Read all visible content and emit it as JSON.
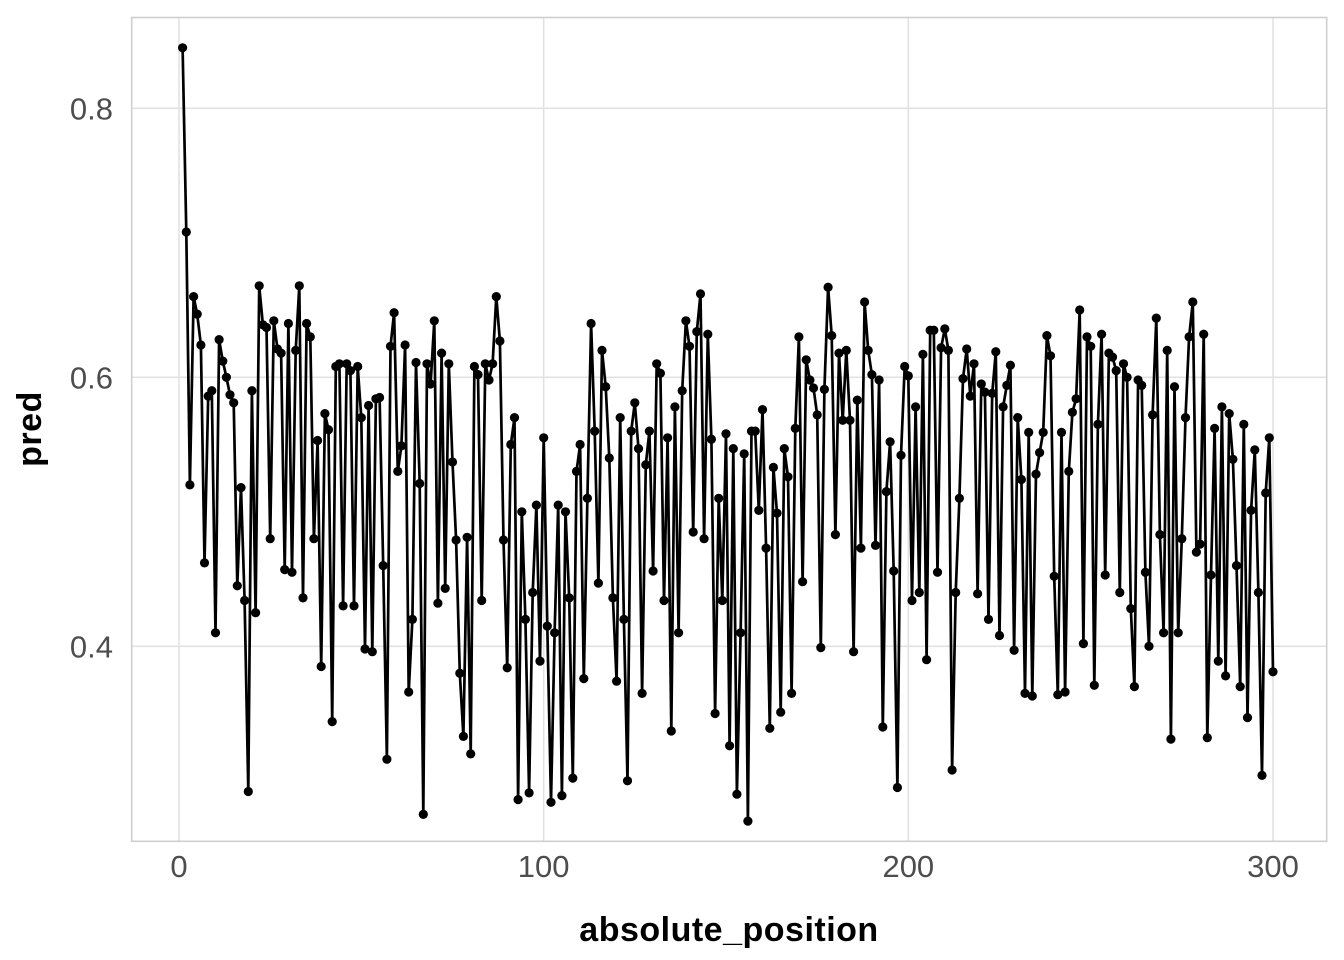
{
  "chart": {
    "xlabel": "absolute_position",
    "ylabel": "pred",
    "x_tick_labels": [
      "0",
      "100",
      "200",
      "300"
    ],
    "y_tick_labels": [
      "0.4",
      "0.6",
      "0.8"
    ],
    "x_ticks": [
      0,
      100,
      200,
      300
    ],
    "y_ticks": [
      0.4,
      0.6,
      0.8
    ],
    "colors": {
      "background": "#ffffff",
      "panel_background": "#ffffff",
      "panel_border": "#cfcfcf",
      "gridline": "#e2e2e2",
      "series": "#000000",
      "tick_label": "#4d4d4d",
      "axis_title": "#000000"
    }
  },
  "chart_data": {
    "type": "line",
    "title": "",
    "xlabel": "absolute_position",
    "ylabel": "pred",
    "legend": "none",
    "grid": true,
    "marker": "point",
    "xlim": [
      -12.97,
      314.73
    ],
    "ylim": [
      0.255,
      0.8675
    ],
    "x_start": 1,
    "x_step": 1,
    "n_points": 300,
    "series": [
      {
        "name": "pred",
        "y": [
          0.845,
          0.708,
          0.52,
          0.66,
          0.647,
          0.624,
          0.462,
          0.586,
          0.59,
          0.41,
          0.628,
          0.612,
          0.6,
          0.587,
          0.581,
          0.445,
          0.518,
          0.434,
          0.292,
          0.59,
          0.425,
          0.668,
          0.639,
          0.637,
          0.48,
          0.642,
          0.621,
          0.618,
          0.457,
          0.64,
          0.455,
          0.62,
          0.668,
          0.436,
          0.64,
          0.63,
          0.48,
          0.553,
          0.385,
          0.573,
          0.561,
          0.344,
          0.608,
          0.61,
          0.43,
          0.61,
          0.605,
          0.43,
          0.608,
          0.57,
          0.398,
          0.579,
          0.396,
          0.584,
          0.585,
          0.46,
          0.316,
          0.623,
          0.648,
          0.53,
          0.549,
          0.624,
          0.366,
          0.42,
          0.611,
          0.521,
          0.275,
          0.61,
          0.595,
          0.642,
          0.432,
          0.618,
          0.443,
          0.61,
          0.537,
          0.479,
          0.38,
          0.333,
          0.481,
          0.32,
          0.608,
          0.602,
          0.434,
          0.61,
          0.598,
          0.61,
          0.66,
          0.627,
          0.479,
          0.384,
          0.55,
          0.57,
          0.286,
          0.5,
          0.42,
          0.291,
          0.44,
          0.505,
          0.389,
          0.555,
          0.415,
          0.284,
          0.41,
          0.505,
          0.289,
          0.5,
          0.436,
          0.302,
          0.53,
          0.55,
          0.376,
          0.51,
          0.64,
          0.56,
          0.447,
          0.62,
          0.593,
          0.54,
          0.436,
          0.374,
          0.57,
          0.42,
          0.3,
          0.56,
          0.581,
          0.547,
          0.365,
          0.535,
          0.56,
          0.456,
          0.61,
          0.603,
          0.434,
          0.555,
          0.337,
          0.578,
          0.41,
          0.59,
          0.642,
          0.623,
          0.485,
          0.634,
          0.662,
          0.48,
          0.632,
          0.554,
          0.35,
          0.51,
          0.434,
          0.558,
          0.326,
          0.547,
          0.29,
          0.41,
          0.543,
          0.27,
          0.56,
          0.56,
          0.501,
          0.576,
          0.473,
          0.339,
          0.533,
          0.499,
          0.351,
          0.547,
          0.526,
          0.365,
          0.562,
          0.63,
          0.448,
          0.613,
          0.598,
          0.592,
          0.572,
          0.399,
          0.591,
          0.667,
          0.631,
          0.483,
          0.618,
          0.568,
          0.62,
          0.568,
          0.396,
          0.583,
          0.473,
          0.656,
          0.62,
          0.602,
          0.475,
          0.598,
          0.34,
          0.515,
          0.552,
          0.456,
          0.295,
          0.542,
          0.608,
          0.601,
          0.434,
          0.578,
          0.44,
          0.617,
          0.39,
          0.635,
          0.635,
          0.455,
          0.622,
          0.636,
          0.62,
          0.308,
          0.44,
          0.51,
          0.599,
          0.621,
          0.586,
          0.61,
          0.439,
          0.595,
          0.589,
          0.42,
          0.588,
          0.619,
          0.408,
          0.578,
          0.594,
          0.609,
          0.397,
          0.57,
          0.524,
          0.365,
          0.559,
          0.363,
          0.528,
          0.544,
          0.559,
          0.631,
          0.616,
          0.452,
          0.364,
          0.559,
          0.366,
          0.53,
          0.574,
          0.584,
          0.65,
          0.402,
          0.63,
          0.623,
          0.371,
          0.565,
          0.632,
          0.453,
          0.618,
          0.615,
          0.605,
          0.44,
          0.61,
          0.6,
          0.428,
          0.37,
          0.598,
          0.594,
          0.455,
          0.4,
          0.572,
          0.644,
          0.483,
          0.41,
          0.62,
          0.331,
          0.593,
          0.41,
          0.48,
          0.57,
          0.63,
          0.656,
          0.47,
          0.476,
          0.632,
          0.332,
          0.453,
          0.562,
          0.389,
          0.578,
          0.378,
          0.573,
          0.539,
          0.46,
          0.37,
          0.565,
          0.347,
          0.501,
          0.546,
          0.44,
          0.304,
          0.514,
          0.555,
          0.381
        ]
      }
    ]
  }
}
